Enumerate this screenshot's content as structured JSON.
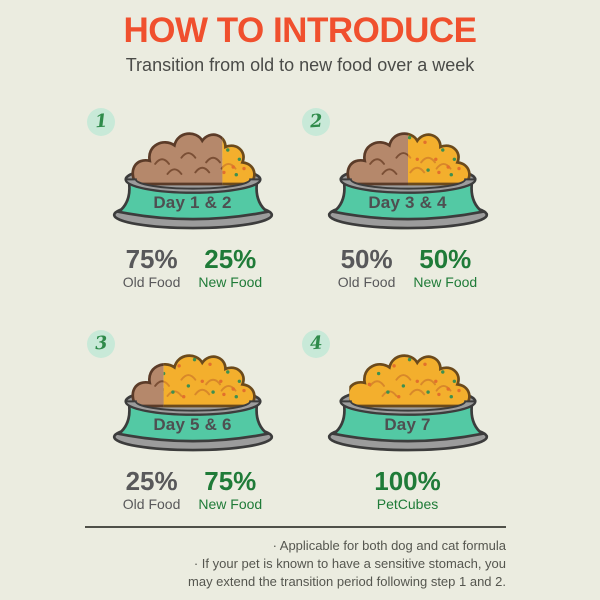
{
  "header": {
    "title": "HOW TO INTRODUCE",
    "subtitle": "Transition from old to new food over a week"
  },
  "colors": {
    "background": "#EBECE0",
    "title_red": "#F0502E",
    "bowl_teal": "#53C9A4",
    "bowl_gray": "#9C9C9C",
    "outline": "#3C3C3C",
    "old_food_brown": "#B5886B",
    "old_food_outline": "#5B3B28",
    "new_food_yellow": "#F3AF2D",
    "new_food_outline": "#6B4A1C",
    "brown_detail": "#7B4F35",
    "yellow_detail": "#D8882A",
    "dot_orange": "#E2702C",
    "dot_green": "#3E8F4F",
    "circle_bg": "#C8E9D8",
    "circle_number_green": "#2F8B4B",
    "old_text_gray": "#58585A",
    "new_text_green": "#1F7B38"
  },
  "steps": [
    {
      "number": "1",
      "day_label": "Day 1 & 2",
      "old_pct": 75,
      "new_pct": 25,
      "old_value": "75%",
      "old_label": "Old Food",
      "new_value": "25%",
      "new_label": "New Food"
    },
    {
      "number": "2",
      "day_label": "Day 3 & 4",
      "old_pct": 50,
      "new_pct": 50,
      "old_value": "50%",
      "old_label": "Old Food",
      "new_value": "50%",
      "new_label": "New Food"
    },
    {
      "number": "3",
      "day_label": "Day 5 & 6",
      "old_pct": 25,
      "new_pct": 75,
      "old_value": "25%",
      "old_label": "Old Food",
      "new_value": "75%",
      "new_label": "New Food"
    },
    {
      "number": "4",
      "day_label": "Day 7",
      "old_pct": 0,
      "new_pct": 100,
      "new_value": "100%",
      "new_label": "PetCubes"
    }
  ],
  "footer": {
    "lines": [
      "· Applicable for both dog and cat formula",
      "· If your pet is known to have a sensitive stomach, you",
      "may extend the transition period following step 1 and 2."
    ]
  }
}
